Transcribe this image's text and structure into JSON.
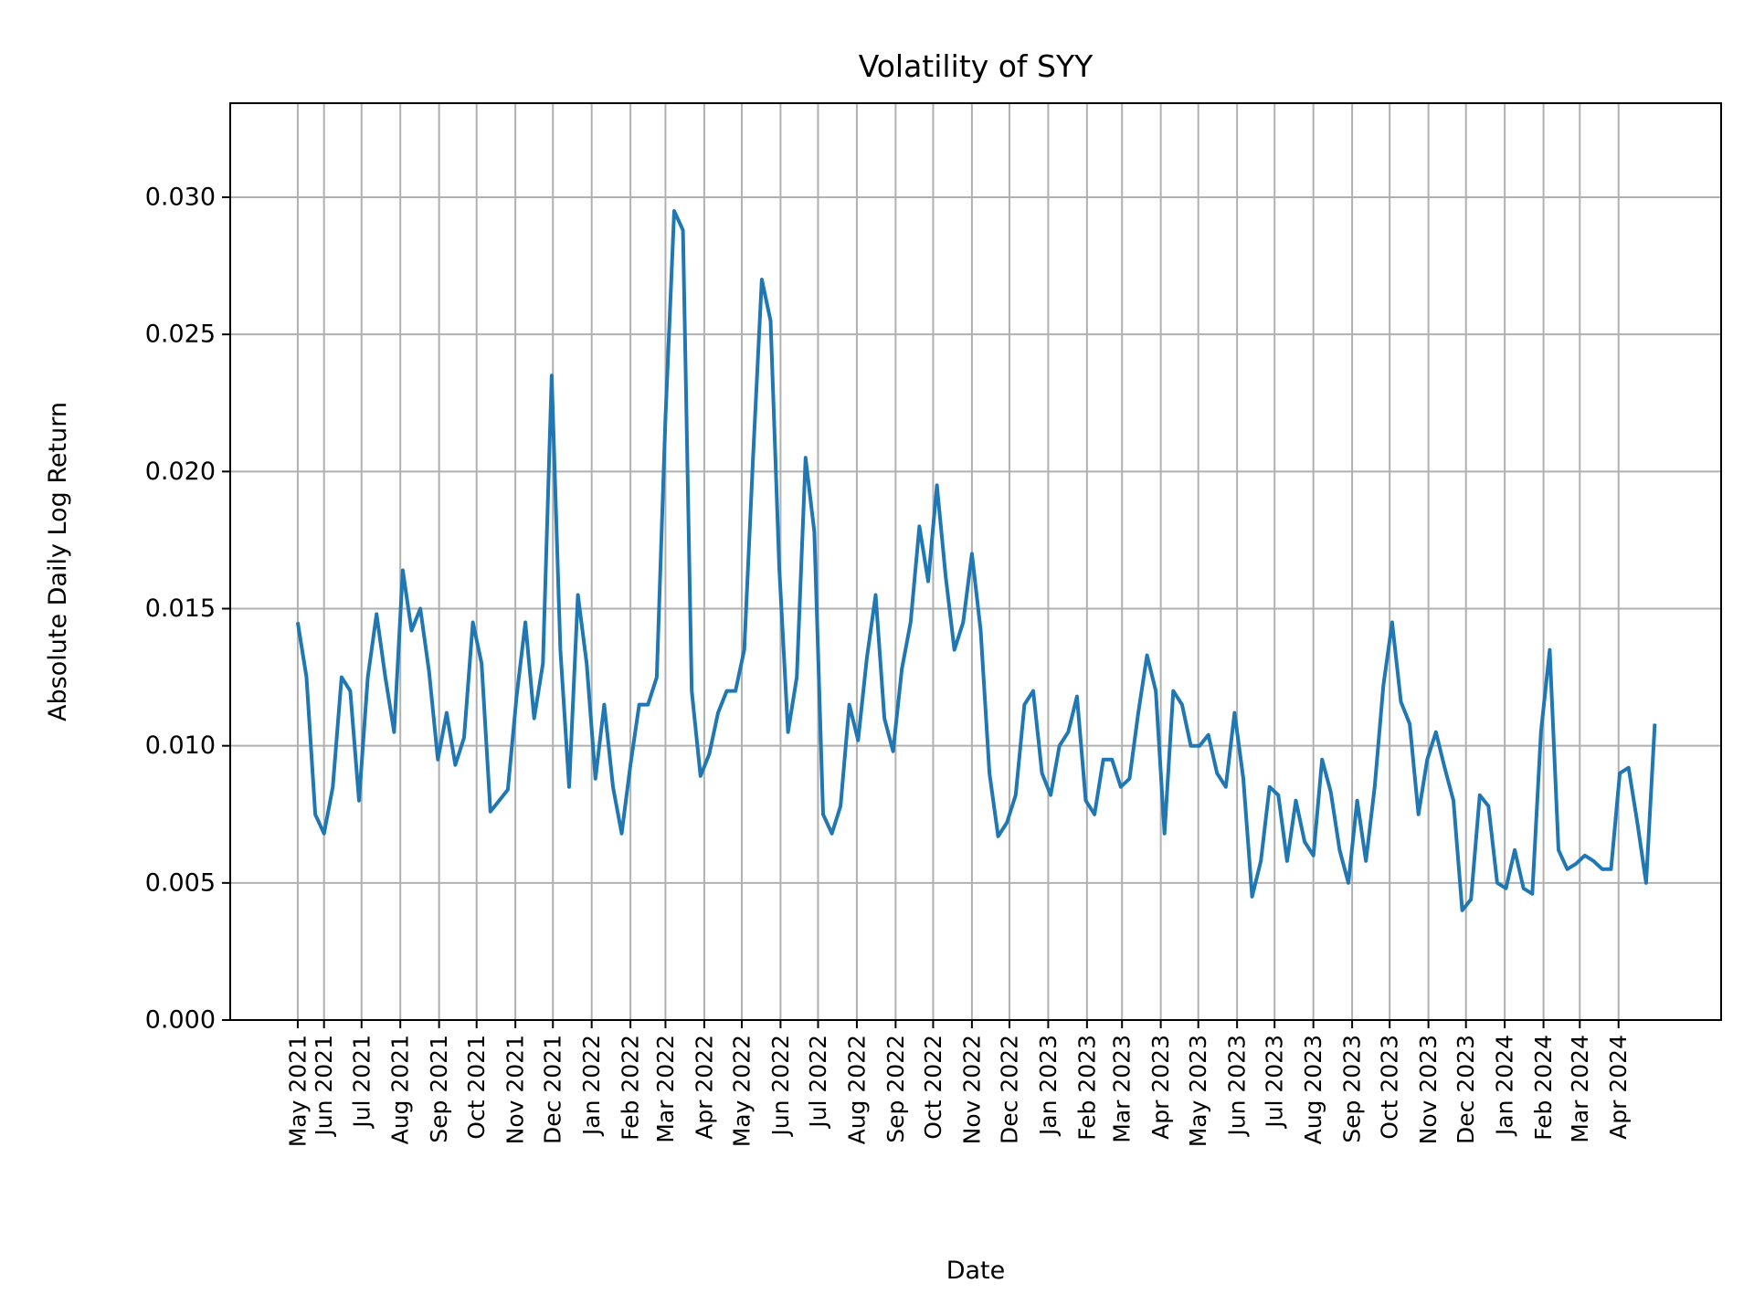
{
  "chart_data": {
    "type": "line",
    "title": "Volatility of SYY",
    "xlabel": "Date",
    "ylabel": "Absolute Daily Log Return",
    "xlim": [
      "2021-03-18",
      "2024-06-22"
    ],
    "ylim": [
      0,
      0.03343
    ],
    "grid": true,
    "line_color": "#1f77b4",
    "y_ticks": [
      "0.000",
      "0.005",
      "0.010",
      "0.015",
      "0.020",
      "0.025",
      "0.030"
    ],
    "x_ticks": [
      {
        "label": "May 2021",
        "date": "2021-05-11"
      },
      {
        "label": "Jun 2021",
        "date": "2021-06-01"
      },
      {
        "label": "Jul 2021",
        "date": "2021-07-01"
      },
      {
        "label": "Aug 2021",
        "date": "2021-08-01"
      },
      {
        "label": "Sep 2021",
        "date": "2021-09-01"
      },
      {
        "label": "Oct 2021",
        "date": "2021-10-01"
      },
      {
        "label": "Nov 2021",
        "date": "2021-11-01"
      },
      {
        "label": "Dec 2021",
        "date": "2021-12-01"
      },
      {
        "label": "Jan 2022",
        "date": "2022-01-01"
      },
      {
        "label": "Feb 2022",
        "date": "2022-02-01"
      },
      {
        "label": "Mar 2022",
        "date": "2022-03-01"
      },
      {
        "label": "Apr 2022",
        "date": "2022-04-01"
      },
      {
        "label": "May 2022",
        "date": "2022-05-01"
      },
      {
        "label": "Jun 2022",
        "date": "2022-06-01"
      },
      {
        "label": "Jul 2022",
        "date": "2022-07-01"
      },
      {
        "label": "Aug 2022",
        "date": "2022-08-01"
      },
      {
        "label": "Sep 2022",
        "date": "2022-09-01"
      },
      {
        "label": "Oct 2022",
        "date": "2022-10-01"
      },
      {
        "label": "Nov 2022",
        "date": "2022-11-01"
      },
      {
        "label": "Dec 2022",
        "date": "2022-12-01"
      },
      {
        "label": "Jan 2023",
        "date": "2023-01-01"
      },
      {
        "label": "Feb 2023",
        "date": "2023-02-01"
      },
      {
        "label": "Mar 2023",
        "date": "2023-03-01"
      },
      {
        "label": "Apr 2023",
        "date": "2023-04-01"
      },
      {
        "label": "May 2023",
        "date": "2023-05-01"
      },
      {
        "label": "Jun 2023",
        "date": "2023-06-01"
      },
      {
        "label": "Jul 2023",
        "date": "2023-07-01"
      },
      {
        "label": "Aug 2023",
        "date": "2023-08-01"
      },
      {
        "label": "Sep 2023",
        "date": "2023-09-01"
      },
      {
        "label": "Oct 2023",
        "date": "2023-10-01"
      },
      {
        "label": "Nov 2023",
        "date": "2023-11-01"
      },
      {
        "label": "Dec 2023",
        "date": "2023-12-01"
      },
      {
        "label": "Jan 2024",
        "date": "2024-01-01"
      },
      {
        "label": "Feb 2024",
        "date": "2024-02-01"
      },
      {
        "label": "Mar 2024",
        "date": "2024-03-01"
      },
      {
        "label": "Apr 2024",
        "date": "2024-04-01"
      }
    ],
    "x": [
      "2021-05-11",
      "2021-05-18",
      "2021-05-25",
      "2021-06-01",
      "2021-06-08",
      "2021-06-15",
      "2021-06-22",
      "2021-06-29",
      "2021-07-06",
      "2021-07-13",
      "2021-07-20",
      "2021-07-27",
      "2021-08-03",
      "2021-08-10",
      "2021-08-17",
      "2021-08-24",
      "2021-08-31",
      "2021-09-07",
      "2021-09-14",
      "2021-09-21",
      "2021-09-28",
      "2021-10-05",
      "2021-10-12",
      "2021-10-19",
      "2021-10-26",
      "2021-11-02",
      "2021-11-09",
      "2021-11-16",
      "2021-11-23",
      "2021-11-30",
      "2021-12-07",
      "2021-12-14",
      "2021-12-21",
      "2021-12-28",
      "2022-01-04",
      "2022-01-11",
      "2022-01-18",
      "2022-01-25",
      "2022-02-01",
      "2022-02-08",
      "2022-02-15",
      "2022-02-22",
      "2022-03-01",
      "2022-03-08",
      "2022-03-15",
      "2022-03-22",
      "2022-03-29",
      "2022-04-05",
      "2022-04-12",
      "2022-04-19",
      "2022-04-26",
      "2022-05-03",
      "2022-05-10",
      "2022-05-17",
      "2022-05-24",
      "2022-05-31",
      "2022-06-07",
      "2022-06-14",
      "2022-06-21",
      "2022-06-28",
      "2022-07-05",
      "2022-07-12",
      "2022-07-19",
      "2022-07-26",
      "2022-08-02",
      "2022-08-09",
      "2022-08-16",
      "2022-08-23",
      "2022-08-30",
      "2022-09-06",
      "2022-09-13",
      "2022-09-20",
      "2022-09-27",
      "2022-10-04",
      "2022-10-11",
      "2022-10-18",
      "2022-10-25",
      "2022-11-01",
      "2022-11-08",
      "2022-11-15",
      "2022-11-22",
      "2022-11-29",
      "2022-12-06",
      "2022-12-13",
      "2022-12-20",
      "2022-12-27",
      "2023-01-03",
      "2023-01-10",
      "2023-01-17",
      "2023-01-24",
      "2023-01-31",
      "2023-02-07",
      "2023-02-14",
      "2023-02-21",
      "2023-02-28",
      "2023-03-07",
      "2023-03-14",
      "2023-03-21",
      "2023-03-28",
      "2023-04-04",
      "2023-04-11",
      "2023-04-18",
      "2023-04-25",
      "2023-05-02",
      "2023-05-09",
      "2023-05-16",
      "2023-05-23",
      "2023-05-30",
      "2023-06-06",
      "2023-06-13",
      "2023-06-20",
      "2023-06-27",
      "2023-07-04",
      "2023-07-11",
      "2023-07-18",
      "2023-07-25",
      "2023-08-01",
      "2023-08-08",
      "2023-08-15",
      "2023-08-22",
      "2023-08-29",
      "2023-09-05",
      "2023-09-12",
      "2023-09-19",
      "2023-09-26",
      "2023-10-03",
      "2023-10-10",
      "2023-10-17",
      "2023-10-24",
      "2023-10-31",
      "2023-11-07",
      "2023-11-14",
      "2023-11-21",
      "2023-11-28",
      "2023-12-05",
      "2023-12-12",
      "2023-12-19",
      "2023-12-26",
      "2024-01-02",
      "2024-01-09",
      "2024-01-16",
      "2024-01-23",
      "2024-01-30",
      "2024-02-06",
      "2024-02-13",
      "2024-02-20",
      "2024-02-27",
      "2024-03-05",
      "2024-03-12",
      "2024-03-19",
      "2024-03-26",
      "2024-04-02",
      "2024-04-09",
      "2024-04-16",
      "2024-04-23",
      "2024-04-30"
    ],
    "y": [
      0.0145,
      0.0125,
      0.0075,
      0.0068,
      0.0085,
      0.0125,
      0.012,
      0.008,
      0.0125,
      0.0148,
      0.0125,
      0.0105,
      0.0164,
      0.0142,
      0.015,
      0.0127,
      0.0095,
      0.0112,
      0.0093,
      0.0103,
      0.0145,
      0.013,
      0.0076,
      0.008,
      0.0084,
      0.0118,
      0.0145,
      0.011,
      0.013,
      0.0235,
      0.0135,
      0.0085,
      0.0155,
      0.013,
      0.0088,
      0.0115,
      0.0085,
      0.0068,
      0.0093,
      0.0115,
      0.0115,
      0.0125,
      0.022,
      0.0295,
      0.0288,
      0.012,
      0.0089,
      0.0097,
      0.0112,
      0.012,
      0.012,
      0.0135,
      0.0205,
      0.027,
      0.0255,
      0.0165,
      0.0105,
      0.0125,
      0.0205,
      0.0178,
      0.0075,
      0.0068,
      0.0078,
      0.0115,
      0.0102,
      0.0132,
      0.0155,
      0.011,
      0.0098,
      0.0128,
      0.0145,
      0.018,
      0.016,
      0.0195,
      0.0162,
      0.0135,
      0.0145,
      0.017,
      0.0142,
      0.009,
      0.0067,
      0.0072,
      0.0082,
      0.0115,
      0.012,
      0.009,
      0.0082,
      0.01,
      0.0105,
      0.0118,
      0.008,
      0.0075,
      0.0095,
      0.0095,
      0.0085,
      0.0088,
      0.0112,
      0.0133,
      0.012,
      0.0068,
      0.012,
      0.0115,
      0.01,
      0.01,
      0.0104,
      0.009,
      0.0085,
      0.0112,
      0.0088,
      0.0045,
      0.0058,
      0.0085,
      0.0082,
      0.0058,
      0.008,
      0.0065,
      0.006,
      0.0095,
      0.0083,
      0.0062,
      0.005,
      0.008,
      0.0058,
      0.0085,
      0.0122,
      0.0145,
      0.0116,
      0.0108,
      0.0075,
      0.0095,
      0.0105,
      0.0092,
      0.008,
      0.004,
      0.0044,
      0.0082,
      0.0078,
      0.005,
      0.0048,
      0.0062,
      0.0048,
      0.0046,
      0.0105,
      0.0135,
      0.0062,
      0.0055,
      0.0057,
      0.006,
      0.0058,
      0.0055,
      0.0055,
      0.009,
      0.0092,
      0.0072,
      0.005,
      0.0108
    ]
  }
}
